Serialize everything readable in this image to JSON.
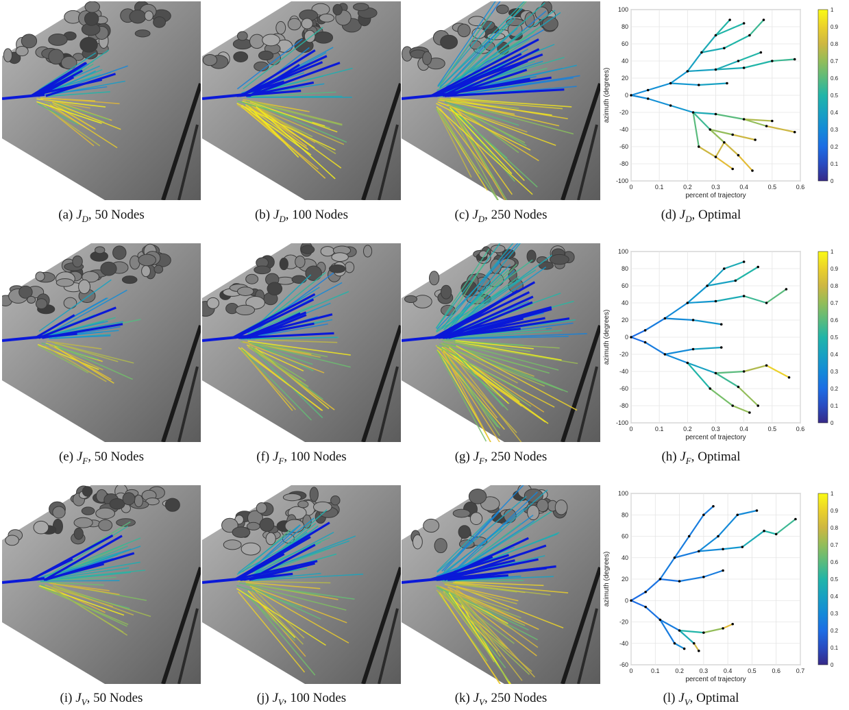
{
  "figure": {
    "rows": [
      {
        "letter_j": "D",
        "panels": [
          {
            "id": "a",
            "label": "(a)",
            "detail": "50 Nodes",
            "nodes": 50
          },
          {
            "id": "b",
            "label": "(b)",
            "detail": "100 Nodes",
            "nodes": 100
          },
          {
            "id": "c",
            "label": "(c)",
            "detail": "250 Nodes",
            "nodes": 250
          },
          {
            "id": "d",
            "label": "(d)",
            "detail": "Optimal"
          }
        ]
      },
      {
        "letter_j": "F",
        "panels": [
          {
            "id": "e",
            "label": "(e)",
            "detail": "50 Nodes",
            "nodes": 50
          },
          {
            "id": "f",
            "label": "(f)",
            "detail": "100 Nodes",
            "nodes": 100
          },
          {
            "id": "g",
            "label": "(g)",
            "detail": "250 Nodes",
            "nodes": 250
          },
          {
            "id": "h",
            "label": "(h)",
            "detail": "Optimal"
          }
        ]
      },
      {
        "letter_j": "V",
        "panels": [
          {
            "id": "i",
            "label": "(i)",
            "detail": "50 Nodes",
            "nodes": 50
          },
          {
            "id": "j",
            "label": "(j)",
            "detail": "100 Nodes",
            "nodes": 100
          },
          {
            "id": "k",
            "label": "(k)",
            "detail": "250 Nodes",
            "nodes": 250
          },
          {
            "id": "l",
            "label": "(l)",
            "detail": "Optimal"
          }
        ]
      }
    ]
  },
  "chart_data": [
    {
      "panel": "d",
      "type": "line",
      "xlabel": "percent of trajectory",
      "ylabel": "azimuth (degrees)",
      "xlim": [
        0,
        0.6
      ],
      "ylim": [
        -100,
        100
      ],
      "xticks": [
        "0",
        "0.1",
        "0.2",
        "0.3",
        "0.4",
        "0.5",
        "0.6"
      ],
      "yticks": [
        "100",
        "80",
        "60",
        "40",
        "20",
        "0",
        "-20",
        "-40",
        "-60",
        "-80",
        "-100"
      ],
      "colorbar": {
        "min": 0,
        "max": 1,
        "ticks": [
          "1",
          "0.9",
          "0.8",
          "0.7",
          "0.6",
          "0.5",
          "0.4",
          "0.3",
          "0.2",
          "0.1",
          "0"
        ]
      },
      "grid": true,
      "edges": [
        [
          [
            0,
            0
          ],
          [
            0.06,
            6
          ],
          0.3
        ],
        [
          [
            0,
            0
          ],
          [
            0.06,
            -4
          ],
          0.3
        ],
        [
          [
            0.06,
            6
          ],
          [
            0.14,
            14
          ],
          0.32
        ],
        [
          [
            0.06,
            -4
          ],
          [
            0.14,
            -12
          ],
          0.32
        ],
        [
          [
            0.14,
            14
          ],
          [
            0.2,
            28
          ],
          0.35
        ],
        [
          [
            0.2,
            28
          ],
          [
            0.25,
            50
          ],
          0.4
        ],
        [
          [
            0.25,
            50
          ],
          [
            0.3,
            70
          ],
          0.45
        ],
        [
          [
            0.3,
            70
          ],
          [
            0.35,
            88
          ],
          0.5
        ],
        [
          [
            0.3,
            70
          ],
          [
            0.4,
            84
          ],
          0.5
        ],
        [
          [
            0.25,
            50
          ],
          [
            0.33,
            55
          ],
          0.45
        ],
        [
          [
            0.33,
            55
          ],
          [
            0.42,
            70
          ],
          0.5
        ],
        [
          [
            0.42,
            70
          ],
          [
            0.47,
            88
          ],
          0.55
        ],
        [
          [
            0.2,
            28
          ],
          [
            0.3,
            30
          ],
          0.4
        ],
        [
          [
            0.3,
            30
          ],
          [
            0.4,
            32
          ],
          0.45
        ],
        [
          [
            0.4,
            32
          ],
          [
            0.5,
            40
          ],
          0.5
        ],
        [
          [
            0.5,
            40
          ],
          [
            0.58,
            42
          ],
          0.55
        ],
        [
          [
            0.3,
            30
          ],
          [
            0.38,
            40
          ],
          0.45
        ],
        [
          [
            0.38,
            40
          ],
          [
            0.46,
            50
          ],
          0.5
        ],
        [
          [
            0.14,
            14
          ],
          [
            0.24,
            12
          ],
          0.35
        ],
        [
          [
            0.24,
            12
          ],
          [
            0.34,
            14
          ],
          0.4
        ],
        [
          [
            0.14,
            -12
          ],
          [
            0.22,
            -20
          ],
          0.35
        ],
        [
          [
            0.22,
            -20
          ],
          [
            0.3,
            -22
          ],
          0.45
        ],
        [
          [
            0.3,
            -22
          ],
          [
            0.4,
            -28
          ],
          0.6
        ],
        [
          [
            0.4,
            -28
          ],
          [
            0.48,
            -36
          ],
          0.7
        ],
        [
          [
            0.48,
            -36
          ],
          [
            0.58,
            -43
          ],
          0.8
        ],
        [
          [
            0.4,
            -28
          ],
          [
            0.5,
            -30
          ],
          0.75
        ],
        [
          [
            0.22,
            -20
          ],
          [
            0.28,
            -40
          ],
          0.55
        ],
        [
          [
            0.28,
            -40
          ],
          [
            0.33,
            -55
          ],
          0.7
        ],
        [
          [
            0.33,
            -55
          ],
          [
            0.38,
            -70
          ],
          0.8
        ],
        [
          [
            0.38,
            -70
          ],
          [
            0.43,
            -88
          ],
          0.85
        ],
        [
          [
            0.28,
            -40
          ],
          [
            0.36,
            -46
          ],
          0.7
        ],
        [
          [
            0.36,
            -46
          ],
          [
            0.44,
            -52
          ],
          0.8
        ],
        [
          [
            0.33,
            -55
          ],
          [
            0.3,
            -72
          ],
          0.8
        ],
        [
          [
            0.3,
            -72
          ],
          [
            0.36,
            -86
          ],
          0.85
        ],
        [
          [
            0.24,
            -60
          ],
          [
            0.3,
            -72
          ],
          0.8
        ],
        [
          [
            0.22,
            -20
          ],
          [
            0.24,
            -60
          ],
          0.6
        ]
      ]
    },
    {
      "panel": "h",
      "type": "line",
      "xlabel": "percent of trajectory",
      "ylabel": "azimuth (degrees)",
      "xlim": [
        0,
        0.6
      ],
      "ylim": [
        -100,
        100
      ],
      "xticks": [
        "0",
        "0.1",
        "0.2",
        "0.3",
        "0.4",
        "0.5",
        "0.6"
      ],
      "yticks": [
        "100",
        "80",
        "60",
        "40",
        "20",
        "0",
        "-20",
        "-40",
        "-60",
        "-80",
        "-100"
      ],
      "colorbar": {
        "min": 0,
        "max": 1,
        "ticks": [
          "1",
          "0.9",
          "0.8",
          "0.7",
          "0.6",
          "0.5",
          "0.4",
          "0.3",
          "0.2",
          "0.1",
          "0"
        ]
      },
      "grid": true,
      "edges": [
        [
          [
            0,
            0
          ],
          [
            0.05,
            8
          ],
          0.2
        ],
        [
          [
            0,
            0
          ],
          [
            0.05,
            -6
          ],
          0.2
        ],
        [
          [
            0.05,
            8
          ],
          [
            0.12,
            22
          ],
          0.25
        ],
        [
          [
            0.12,
            22
          ],
          [
            0.2,
            40
          ],
          0.3
        ],
        [
          [
            0.2,
            40
          ],
          [
            0.27,
            60
          ],
          0.35
        ],
        [
          [
            0.27,
            60
          ],
          [
            0.33,
            80
          ],
          0.4
        ],
        [
          [
            0.33,
            80
          ],
          [
            0.4,
            88
          ],
          0.45
        ],
        [
          [
            0.27,
            60
          ],
          [
            0.37,
            66
          ],
          0.4
        ],
        [
          [
            0.37,
            66
          ],
          [
            0.45,
            82
          ],
          0.5
        ],
        [
          [
            0.2,
            40
          ],
          [
            0.3,
            42
          ],
          0.35
        ],
        [
          [
            0.3,
            42
          ],
          [
            0.4,
            48
          ],
          0.45
        ],
        [
          [
            0.4,
            48
          ],
          [
            0.48,
            40
          ],
          0.55
        ],
        [
          [
            0.48,
            40
          ],
          [
            0.55,
            56
          ],
          0.6
        ],
        [
          [
            0.12,
            22
          ],
          [
            0.22,
            20
          ],
          0.3
        ],
        [
          [
            0.22,
            20
          ],
          [
            0.32,
            15
          ],
          0.35
        ],
        [
          [
            0.05,
            -6
          ],
          [
            0.12,
            -20
          ],
          0.25
        ],
        [
          [
            0.12,
            -20
          ],
          [
            0.2,
            -30
          ],
          0.3
        ],
        [
          [
            0.2,
            -30
          ],
          [
            0.3,
            -42
          ],
          0.4
        ],
        [
          [
            0.3,
            -42
          ],
          [
            0.38,
            -58
          ],
          0.55
        ],
        [
          [
            0.38,
            -58
          ],
          [
            0.45,
            -80
          ],
          0.7
        ],
        [
          [
            0.3,
            -42
          ],
          [
            0.4,
            -40
          ],
          0.6
        ],
        [
          [
            0.4,
            -40
          ],
          [
            0.48,
            -33
          ],
          0.75
        ],
        [
          [
            0.48,
            -33
          ],
          [
            0.56,
            -47
          ],
          0.9
        ],
        [
          [
            0.2,
            -30
          ],
          [
            0.28,
            -60
          ],
          0.5
        ],
        [
          [
            0.28,
            -60
          ],
          [
            0.36,
            -80
          ],
          0.65
        ],
        [
          [
            0.36,
            -80
          ],
          [
            0.42,
            -88
          ],
          0.7
        ],
        [
          [
            0.12,
            -20
          ],
          [
            0.22,
            -14
          ],
          0.3
        ],
        [
          [
            0.22,
            -14
          ],
          [
            0.32,
            -12
          ],
          0.4
        ]
      ]
    },
    {
      "panel": "l",
      "type": "line",
      "xlabel": "percent of trajectory",
      "ylabel": "azimuth (degrees)",
      "xlim": [
        0,
        0.7
      ],
      "ylim": [
        -60,
        100
      ],
      "xticks": [
        "0",
        "0.1",
        "0.2",
        "0.3",
        "0.4",
        "0.5",
        "0.6",
        "0.7"
      ],
      "yticks": [
        "100",
        "80",
        "60",
        "40",
        "20",
        "0",
        "-20",
        "-40",
        "-60"
      ],
      "colorbar": {
        "min": 0,
        "max": 1,
        "ticks": [
          "1",
          "0.9",
          "0.8",
          "0.7",
          "0.6",
          "0.5",
          "0.4",
          "0.3",
          "0.2",
          "0.1",
          "0"
        ]
      },
      "grid": true,
      "edges": [
        [
          [
            0,
            0
          ],
          [
            0.06,
            8
          ],
          0.2
        ],
        [
          [
            0,
            0
          ],
          [
            0.06,
            -6
          ],
          0.2
        ],
        [
          [
            0.06,
            8
          ],
          [
            0.12,
            20
          ],
          0.22
        ],
        [
          [
            0.12,
            20
          ],
          [
            0.18,
            40
          ],
          0.25
        ],
        [
          [
            0.18,
            40
          ],
          [
            0.24,
            60
          ],
          0.25
        ],
        [
          [
            0.24,
            60
          ],
          [
            0.3,
            80
          ],
          0.25
        ],
        [
          [
            0.3,
            80
          ],
          [
            0.34,
            88
          ],
          0.25
        ],
        [
          [
            0.18,
            40
          ],
          [
            0.28,
            46
          ],
          0.25
        ],
        [
          [
            0.28,
            46
          ],
          [
            0.36,
            60
          ],
          0.3
        ],
        [
          [
            0.36,
            60
          ],
          [
            0.44,
            80
          ],
          0.3
        ],
        [
          [
            0.44,
            80
          ],
          [
            0.52,
            84
          ],
          0.3
        ],
        [
          [
            0.28,
            46
          ],
          [
            0.38,
            48
          ],
          0.3
        ],
        [
          [
            0.38,
            48
          ],
          [
            0.46,
            50
          ],
          0.35
        ],
        [
          [
            0.46,
            50
          ],
          [
            0.55,
            65
          ],
          0.45
        ],
        [
          [
            0.55,
            65
          ],
          [
            0.6,
            62
          ],
          0.5
        ],
        [
          [
            0.6,
            62
          ],
          [
            0.68,
            76
          ],
          0.55
        ],
        [
          [
            0.12,
            20
          ],
          [
            0.2,
            18
          ],
          0.22
        ],
        [
          [
            0.2,
            18
          ],
          [
            0.3,
            22
          ],
          0.25
        ],
        [
          [
            0.3,
            22
          ],
          [
            0.38,
            28
          ],
          0.25
        ],
        [
          [
            0.06,
            -6
          ],
          [
            0.12,
            -18
          ],
          0.22
        ],
        [
          [
            0.12,
            -18
          ],
          [
            0.2,
            -28
          ],
          0.25
        ],
        [
          [
            0.2,
            -28
          ],
          [
            0.26,
            -40
          ],
          0.45
        ],
        [
          [
            0.26,
            -40
          ],
          [
            0.28,
            -47
          ],
          0.8
        ],
        [
          [
            0.2,
            -28
          ],
          [
            0.3,
            -30
          ],
          0.5
        ],
        [
          [
            0.3,
            -30
          ],
          [
            0.38,
            -26
          ],
          0.7
        ],
        [
          [
            0.38,
            -26
          ],
          [
            0.42,
            -22
          ],
          0.85
        ],
        [
          [
            0.12,
            -18
          ],
          [
            0.18,
            -40
          ],
          0.25
        ],
        [
          [
            0.18,
            -40
          ],
          [
            0.22,
            -45
          ],
          0.3
        ]
      ]
    }
  ],
  "overlays": [
    {
      "panel": "a",
      "fan_center": -2,
      "spread": 38,
      "length": 120,
      "count": 30,
      "bold": 6
    },
    {
      "panel": "b",
      "fan_center": -2,
      "spread": 45,
      "length": 160,
      "count": 40,
      "bold": 8
    },
    {
      "panel": "c",
      "fan_center": -4,
      "spread": 60,
      "length": 200,
      "count": 70,
      "bold": 10
    },
    {
      "panel": "e",
      "fan_center": -4,
      "spread": 40,
      "length": 130,
      "count": 30,
      "bold": 4
    },
    {
      "panel": "f",
      "fan_center": -4,
      "spread": 50,
      "length": 160,
      "count": 40,
      "bold": 8
    },
    {
      "panel": "g",
      "fan_center": -4,
      "spread": 62,
      "length": 200,
      "count": 70,
      "bold": 12
    },
    {
      "panel": "i",
      "fan_center": -2,
      "spread": 36,
      "length": 150,
      "count": 30,
      "bold": 6
    },
    {
      "panel": "j",
      "fan_center": -4,
      "spread": 48,
      "length": 170,
      "count": 40,
      "bold": 8
    },
    {
      "panel": "k",
      "fan_center": -6,
      "spread": 55,
      "length": 190,
      "count": 60,
      "bold": 10
    }
  ],
  "colors": {
    "bold": "#0a19d8",
    "ground_light": "#b9b9b9",
    "ground_dark": "#5c5c5c",
    "rock": "#3a3a3a"
  }
}
